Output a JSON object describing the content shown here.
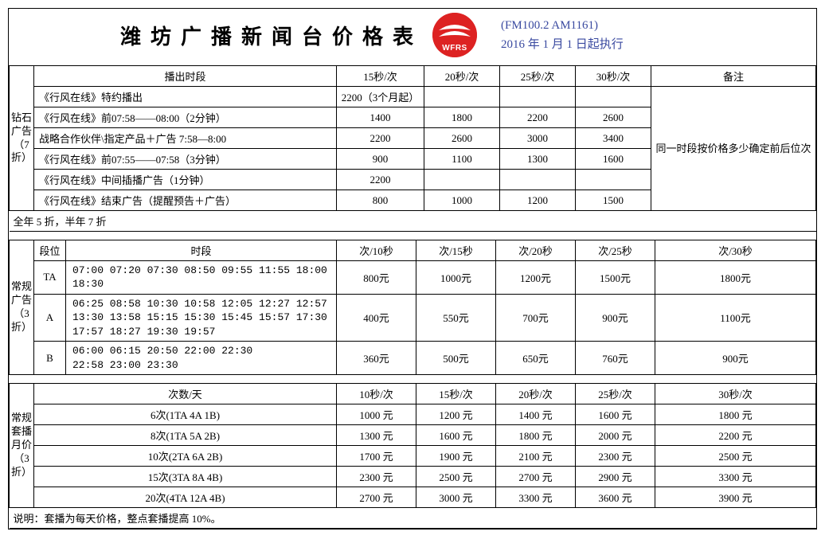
{
  "header": {
    "title": "潍坊广播新闻台价格表",
    "logo_text": "WFRS",
    "logo_bg": "#dd2222",
    "sub_line1": "(FM100.2 AM1161)",
    "sub_line2": "2016 年 1 月 1 日起执行",
    "accent_color": "#3a4aa0"
  },
  "table1": {
    "side_label": "钻石广告（7折）",
    "h_slot": "播出时段",
    "h_15": "15秒/次",
    "h_20": "20秒/次",
    "h_25": "25秒/次",
    "h_30": "30秒/次",
    "h_note": "备注",
    "note_text": "同一时段按价格多少确定前后位次",
    "rows": [
      {
        "slot": "《行风在线》特约播出",
        "c15": "2200（3个月起）",
        "c20": "",
        "c25": "",
        "c30": ""
      },
      {
        "slot": "《行风在线》前07:58——08:00（2分钟）",
        "c15": "1400",
        "c20": "1800",
        "c25": "2200",
        "c30": "2600"
      },
      {
        "slot": "战略合作伙伴\\指定产品＋广告 7:58—8:00",
        "c15": "2200",
        "c20": "2600",
        "c25": "3000",
        "c30": "3400"
      },
      {
        "slot": "《行风在线》前07:55——07:58（3分钟）",
        "c15": "900",
        "c20": "1100",
        "c25": "1300",
        "c30": "1600"
      },
      {
        "slot": "《行风在线》中间插播广告（1分钟）",
        "c15": "2200",
        "c20": "",
        "c25": "",
        "c30": ""
      },
      {
        "slot": "《行风在线》结束广告（提醒预告＋广告）",
        "c15": "800",
        "c20": "1000",
        "c25": "1200",
        "c30": "1500"
      }
    ],
    "discount_note": "全年 5 折，半年 7 折"
  },
  "table2": {
    "side_label": "常规广告（3折）",
    "h_seg": "段位",
    "h_time": "时段",
    "h_10": "次/10秒",
    "h_15": "次/15秒",
    "h_20": "次/20秒",
    "h_25": "次/25秒",
    "h_30": "次/30秒",
    "rows": [
      {
        "seg": "TA",
        "times": "07:00  07:20  07:30  08:50  09:55 11:55  18:00 18:30",
        "c10": "800元",
        "c15": "1000元",
        "c20": "1200元",
        "c25": "1500元",
        "c30": "1800元"
      },
      {
        "seg": "A",
        "times": "06:25  08:58  10:30  10:58  12:05  12:27  12:57\n13:30  13:58  15:15  15:30  15:45  15:57  17:30\n17:57  18:27  19:30  19:57",
        "c10": "400元",
        "c15": "550元",
        "c20": "700元",
        "c25": "900元",
        "c30": "1100元"
      },
      {
        "seg": "B",
        "times": "06:00  06:15  20:50  22:00  22:30\n22:58  23:00  23:30",
        "c10": "360元",
        "c15": "500元",
        "c20": "650元",
        "c25": "760元",
        "c30": "900元"
      }
    ]
  },
  "table3": {
    "side_label": "常规套播月价（3折）",
    "h_freq": "次数/天",
    "h_10": "10秒/次",
    "h_15": "15秒/次",
    "h_20": "20秒/次",
    "h_25": "25秒/次",
    "h_30": "30秒/次",
    "rows": [
      {
        "freq": "6次(1TA  4A  1B)",
        "c10": "1000 元",
        "c15": "1200 元",
        "c20": "1400 元",
        "c25": "1600 元",
        "c30": "1800 元"
      },
      {
        "freq": "8次(1TA  5A  2B)",
        "c10": "1300 元",
        "c15": "1600 元",
        "c20": "1800 元",
        "c25": "2000 元",
        "c30": "2200 元"
      },
      {
        "freq": "10次(2TA  6A  2B)",
        "c10": "1700 元",
        "c15": "1900 元",
        "c20": "2100 元",
        "c25": "2300 元",
        "c30": "2500 元"
      },
      {
        "freq": "15次(3TA  8A 4B)",
        "c10": "2300 元",
        "c15": "2500 元",
        "c20": "2700 元",
        "c25": "2900 元",
        "c30": "3300 元"
      },
      {
        "freq": "20次(4TA  12A  4B)",
        "c10": "2700 元",
        "c15": "3000 元",
        "c20": "3300 元",
        "c25": "3600 元",
        "c30": "3900 元"
      }
    ],
    "footer_note": "说明：套播为每天价格，整点套播提高 10%。"
  }
}
